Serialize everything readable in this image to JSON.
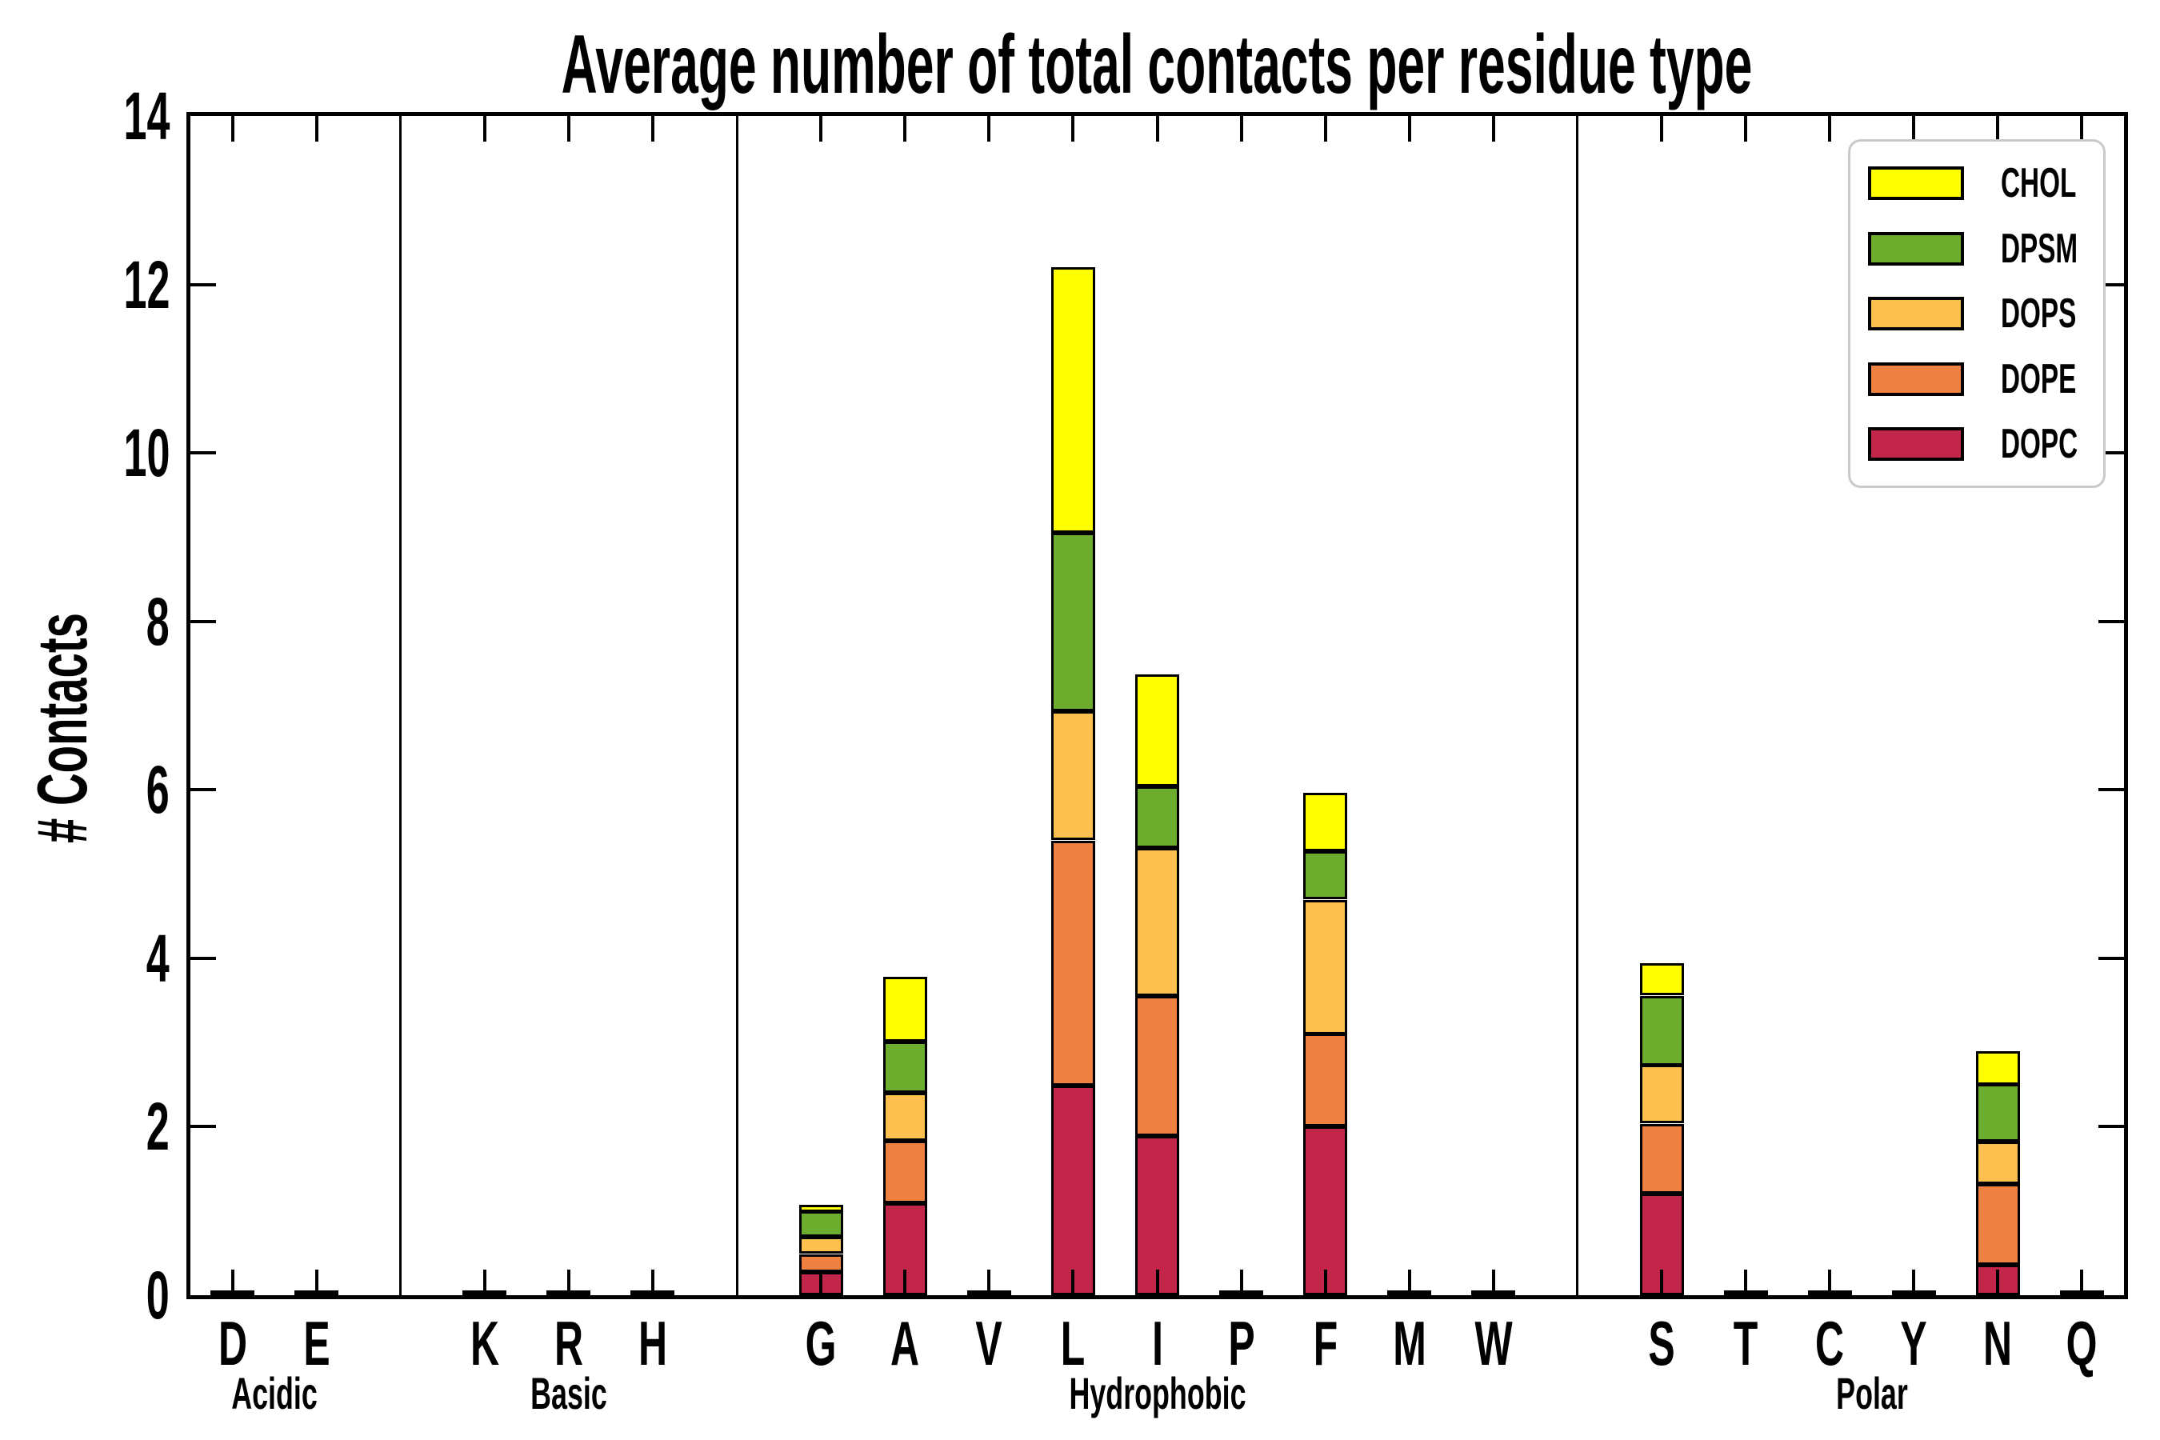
{
  "chart_data": {
    "type": "bar",
    "stacked": true,
    "title": "Average number of total contacts per residue type",
    "ylabel": "# Contacts",
    "xlabel": "",
    "ylim": [
      0,
      14
    ],
    "yticks": [
      0,
      2,
      4,
      6,
      8,
      10,
      12,
      14
    ],
    "grid": false,
    "legend_position": "upper right",
    "legend_entries_top_to_bottom": [
      "CHOL",
      "DPSM",
      "DOPS",
      "DOPE",
      "DOPC"
    ],
    "series_bottom_to_top": [
      "DOPC",
      "DOPE",
      "DOPS",
      "DPSM",
      "CHOL"
    ],
    "colors": {
      "DOPC": "#C2274B",
      "DOPE": "#EE8142",
      "DOPS": "#FBC04D",
      "DPSM": "#6CAD2D",
      "CHOL": "#FFFF00"
    },
    "groups": [
      {
        "label": "Acidic",
        "residues": [
          {
            "label": "D",
            "values": [
              0.02,
              0,
              0,
              0,
              0
            ],
            "total": 0.02
          },
          {
            "label": "E",
            "values": [
              0.02,
              0,
              0,
              0,
              0
            ],
            "total": 0.02
          }
        ]
      },
      {
        "label": "Basic",
        "residues": [
          {
            "label": "K",
            "values": [
              0.02,
              0,
              0,
              0,
              0
            ],
            "total": 0.02
          },
          {
            "label": "R",
            "values": [
              0.02,
              0,
              0,
              0,
              0
            ],
            "total": 0.02
          },
          {
            "label": "H",
            "values": [
              0.02,
              0,
              0,
              0,
              0
            ],
            "total": 0.02
          }
        ]
      },
      {
        "label": "Hydrophobic",
        "residues": [
          {
            "label": "G",
            "values": [
              0.28,
              0.21,
              0.2,
              0.3,
              0.09
            ],
            "total": 1.08
          },
          {
            "label": "A",
            "values": [
              1.09,
              0.74,
              0.57,
              0.61,
              0.77
            ],
            "total": 3.78
          },
          {
            "label": "V",
            "values": [
              0.02,
              0,
              0,
              0,
              0
            ],
            "total": 0.02
          },
          {
            "label": "L",
            "values": [
              2.49,
              2.91,
              1.53,
              2.12,
              3.15
            ],
            "total": 12.2
          },
          {
            "label": "I",
            "values": [
              1.89,
              1.66,
              1.76,
              0.73,
              1.33
            ],
            "total": 7.37
          },
          {
            "label": "P",
            "values": [
              0.02,
              0,
              0,
              0,
              0
            ],
            "total": 0.02
          },
          {
            "label": "F",
            "values": [
              2.0,
              1.1,
              1.6,
              0.57,
              0.69
            ],
            "total": 5.96
          },
          {
            "label": "M",
            "values": [
              0.02,
              0,
              0,
              0,
              0
            ],
            "total": 0.02
          },
          {
            "label": "W",
            "values": [
              0.02,
              0,
              0,
              0,
              0
            ],
            "total": 0.02
          }
        ]
      },
      {
        "label": "Polar",
        "residues": [
          {
            "label": "S",
            "values": [
              1.21,
              0.83,
              0.69,
              0.83,
              0.38
            ],
            "total": 3.94
          },
          {
            "label": "T",
            "values": [
              0.02,
              0,
              0,
              0,
              0
            ],
            "total": 0.02
          },
          {
            "label": "C",
            "values": [
              0.02,
              0,
              0,
              0,
              0
            ],
            "total": 0.02
          },
          {
            "label": "Y",
            "values": [
              0.02,
              0,
              0,
              0,
              0
            ],
            "total": 0.02
          },
          {
            "label": "N",
            "values": [
              0.36,
              0.96,
              0.5,
              0.68,
              0.4
            ],
            "total": 2.9
          },
          {
            "label": "Q",
            "values": [
              0.02,
              0,
              0,
              0,
              0
            ],
            "total": 0.02
          }
        ]
      }
    ]
  }
}
